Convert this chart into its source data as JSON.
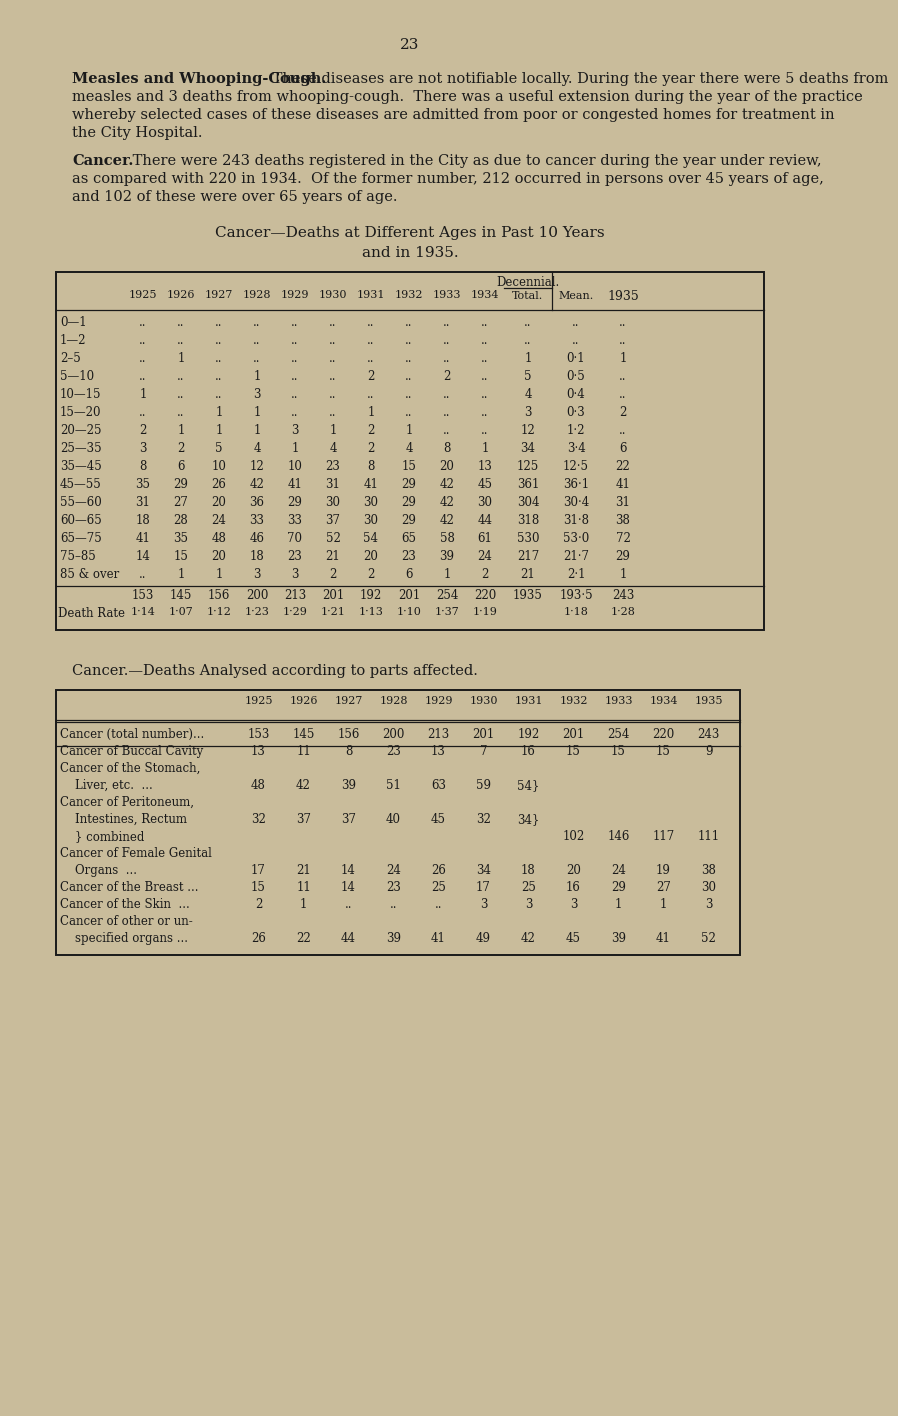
{
  "bg_color": "#c9bc9b",
  "text_color": "#1a1a1a",
  "page_number": "23",
  "para1_bold": "Measles and Whooping-Cough.",
  "para1_rest": "  These diseases are not notifiable locally. During the year there were 5 deaths from measles and 3 deaths from whooping-cough. There was a useful extension during the year of the practice whereby selected cases of these diseases are admitted from poor or congested homes for treatment in the City Hospital.",
  "para2_bold": "Cancer.",
  "para2_rest": "  There were 243 deaths registered in the City as due to cancer during the year under review, as compared with 220 in 1934. Of the former number, 212 occurred in persons over 45 years of age, and 102 of these were over 65 years of age.",
  "t1_title1": "Cancer—Deaths at Different Ages in Past 10 Years",
  "t1_title2": "and in 1935.",
  "t1_col_headers": [
    "1925",
    "1926",
    "1927",
    "1928",
    "1929",
    "1930",
    "1931",
    "1932",
    "1933",
    "1934",
    "Total.",
    "Mean.",
    "1935"
  ],
  "t1_decennial": "Decennial.",
  "t1_rows": [
    [
      "0—1",
      "..",
      "..",
      "..",
      "..",
      "..",
      "..",
      "..",
      "..",
      "..",
      "..",
      "..",
      "..",
      ".."
    ],
    [
      "1—2",
      "..",
      "..",
      "..",
      "..",
      "..",
      "..",
      "..",
      "..",
      "..",
      "..",
      "..",
      "..",
      ".."
    ],
    [
      "2–5",
      "..",
      "1",
      "..",
      "..",
      "..",
      "..",
      "..",
      "..",
      "..",
      "..",
      "1",
      "0·1",
      "1"
    ],
    [
      "5—10",
      "..",
      "..",
      "..",
      "1",
      "..",
      "..",
      "2",
      "..",
      "2",
      "..",
      "5",
      "0·5",
      ".."
    ],
    [
      "10—15",
      "1",
      "..",
      "..",
      "3",
      "..",
      "..",
      "..",
      "..",
      "..",
      "..",
      "4",
      "0·4",
      ".."
    ],
    [
      "15—20",
      "..",
      "..",
      "1",
      "1",
      "..",
      "..",
      "1",
      "..",
      "..",
      "..",
      "3",
      "0·3",
      "2"
    ],
    [
      "20—25",
      "2",
      "1",
      "1",
      "1",
      "3",
      "1",
      "2",
      "1",
      "..",
      "..",
      "12",
      "1·2",
      ".."
    ],
    [
      "25—35",
      "3",
      "2",
      "5",
      "4",
      "1",
      "4",
      "2",
      "4",
      "8",
      "1",
      "34",
      "3·4",
      "6"
    ],
    [
      "35—45",
      "8",
      "6",
      "10",
      "12",
      "10",
      "23",
      "8",
      "15",
      "20",
      "13",
      "125",
      "12·5",
      "22"
    ],
    [
      "45—55",
      "35",
      "29",
      "26",
      "42",
      "41",
      "31",
      "41",
      "29",
      "42",
      "45",
      "361",
      "36·1",
      "41"
    ],
    [
      "55—60",
      "31",
      "27",
      "20",
      "36",
      "29",
      "30",
      "30",
      "29",
      "42",
      "30",
      "304",
      "30·4",
      "31"
    ],
    [
      "60—65",
      "18",
      "28",
      "24",
      "33",
      "33",
      "37",
      "30",
      "29",
      "42",
      "44",
      "318",
      "31·8",
      "38"
    ],
    [
      "65—75",
      "41",
      "35",
      "48",
      "46",
      "70",
      "52",
      "54",
      "65",
      "58",
      "61",
      "530",
      "53·0",
      "72"
    ],
    [
      "75–85",
      "14",
      "15",
      "20",
      "18",
      "23",
      "21",
      "20",
      "23",
      "39",
      "24",
      "217",
      "21·7",
      "29"
    ],
    [
      "85 & over",
      "..",
      "1",
      "1",
      "3",
      "3",
      "2",
      "2",
      "6",
      "1",
      "2",
      "21",
      "2·1",
      "1"
    ]
  ],
  "t1_totals_label": "",
  "t1_totals": [
    "153",
    "145",
    "156",
    "200",
    "213",
    "201",
    "192",
    "201",
    "254",
    "220",
    "1935",
    "193·5",
    "243"
  ],
  "t1_death_rate_label": "Death Rate",
  "t1_death_rate": [
    "1·14",
    "1·07",
    "1·12",
    "1·23",
    "1·29",
    "1·21",
    "1·13",
    "1·10",
    "1·37",
    "1·19",
    "",
    "1·18",
    "1·28"
  ],
  "t2_title": "Cancer.—Deaths Analysed according to parts affected.",
  "t2_col_headers": [
    "1925",
    "1926",
    "1927",
    "1928",
    "1929",
    "1930",
    "1931",
    "1932",
    "1933",
    "1934",
    "1935"
  ],
  "t2_rows": [
    {
      "label": "Cancer (total number)...",
      "vals": [
        "153",
        "145",
        "156",
        "200",
        "213",
        "201",
        "192",
        "201",
        "254",
        "220",
        "243"
      ],
      "sep_after": true
    },
    {
      "label": "Cancer of Buccal Cavity",
      "vals": [
        "13",
        "11",
        "8",
        "23",
        "13",
        "7",
        "16",
        "15",
        "15",
        "15",
        "9"
      ],
      "sep_after": false
    },
    {
      "label": "Cancer of the Stomach,",
      "vals": [
        "",
        "",
        "",
        "",
        "",
        "",
        "",
        "",
        "",
        "",
        ""
      ],
      "sep_after": false
    },
    {
      "label": "    Liver, etc.  ...",
      "vals": [
        "48",
        "42",
        "39",
        "51",
        "63",
        "59",
        "54}",
        "",
        "",
        "",
        ""
      ],
      "sep_after": false
    },
    {
      "label": "Cancer of Peritoneum,",
      "vals": [
        "",
        "",
        "",
        "",
        "",
        "",
        "",
        "",
        "",
        "",
        ""
      ],
      "sep_after": false
    },
    {
      "label": "    Intestines, Rectum",
      "vals": [
        "32",
        "37",
        "37",
        "40",
        "45",
        "32",
        "34}",
        "",
        "",
        "",
        ""
      ],
      "sep_after": false
    },
    {
      "label": "    } combined",
      "vals": [
        "",
        "",
        "",
        "",
        "",
        "",
        "",
        "102",
        "146",
        "117",
        "111"
      ],
      "sep_after": false
    },
    {
      "label": "Cancer of Female Genital",
      "vals": [
        "",
        "",
        "",
        "",
        "",
        "",
        "",
        "",
        "",
        "",
        ""
      ],
      "sep_after": false
    },
    {
      "label": "    Organs  ...",
      "vals": [
        "17",
        "21",
        "14",
        "24",
        "26",
        "34",
        "18",
        "20",
        "24",
        "19",
        "38"
      ],
      "sep_after": false
    },
    {
      "label": "Cancer of the Breast ...",
      "vals": [
        "15",
        "11",
        "14",
        "23",
        "25",
        "17",
        "25",
        "16",
        "29",
        "27",
        "30"
      ],
      "sep_after": false
    },
    {
      "label": "Cancer of the Skin  ...",
      "vals": [
        "2",
        "1",
        "..",
        "..",
        "..",
        "3",
        "3",
        "3",
        "1",
        "1",
        "3"
      ],
      "sep_after": false
    },
    {
      "label": "Cancer of other or un-",
      "vals": [
        "",
        "",
        "",
        "",
        "",
        "",
        "",
        "",
        "",
        "",
        ""
      ],
      "sep_after": false
    },
    {
      "label": "    specified organs ...",
      "vals": [
        "26",
        "22",
        "44",
        "39",
        "41",
        "49",
        "42",
        "45",
        "39",
        "41",
        "52"
      ],
      "sep_after": false
    }
  ]
}
